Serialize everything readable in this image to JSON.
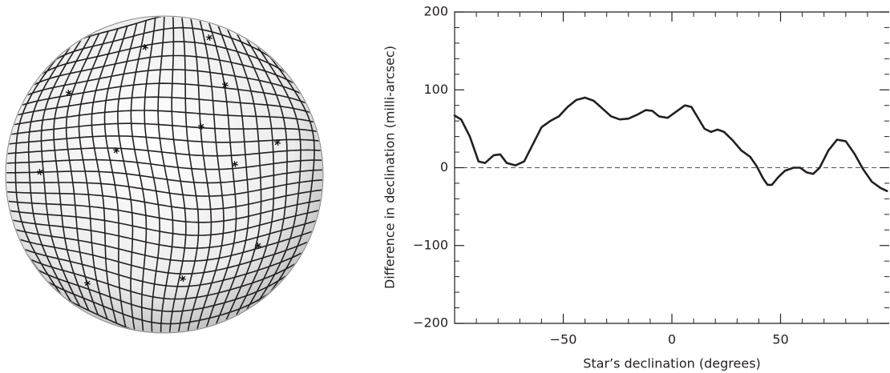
{
  "chart_data": {
    "type": "line",
    "xlabel": "Star’s declination (degrees)",
    "ylabel": "Difference in declination (milli-arcsec)",
    "xlim": [
      -100,
      100
    ],
    "ylim": [
      -200,
      200
    ],
    "xticks": [
      {
        "value": -50,
        "label": "−50"
      },
      0,
      50
    ],
    "yticks": [
      {
        "value": -200,
        "label": "−200"
      },
      {
        "value": -100,
        "label": "−100"
      },
      0,
      100,
      200
    ],
    "xminorticks": [
      -90,
      -80,
      -70,
      -60,
      -40,
      -30,
      -20,
      -10,
      10,
      20,
      30,
      40,
      60,
      70,
      80,
      90
    ],
    "yminorticks": [
      -180,
      -160,
      -140,
      -120,
      -80,
      -60,
      -40,
      -20,
      20,
      40,
      60,
      80,
      120,
      140,
      160,
      180
    ],
    "zero_line": true,
    "series": [
      {
        "color": "#231f20",
        "x": [
          -100,
          -97,
          -93,
          -89,
          -86,
          -82,
          -79,
          -76,
          -72,
          -68,
          -64,
          -60,
          -56,
          -52,
          -48,
          -44,
          -40,
          -36,
          -32,
          -28,
          -24,
          -20,
          -16,
          -12,
          -9,
          -6,
          -2,
          2,
          6,
          9,
          12,
          15,
          18,
          21,
          24,
          28,
          32,
          36,
          39,
          42,
          44,
          46,
          49,
          52,
          56,
          59,
          62,
          65,
          68,
          72,
          76,
          80,
          84,
          88,
          92,
          96,
          99
        ],
        "values": [
          67,
          62,
          40,
          8,
          6,
          16,
          17,
          6,
          3,
          8,
          30,
          52,
          60,
          66,
          78,
          87,
          90,
          86,
          76,
          66,
          62,
          63,
          68,
          74,
          73,
          66,
          64,
          72,
          80,
          78,
          64,
          50,
          46,
          49,
          46,
          35,
          22,
          14,
          2,
          -14,
          -22,
          -22,
          -12,
          -4,
          0,
          0,
          -6,
          -8,
          0,
          22,
          36,
          34,
          18,
          -2,
          -18,
          -26,
          -30
        ]
      }
    ]
  }
}
